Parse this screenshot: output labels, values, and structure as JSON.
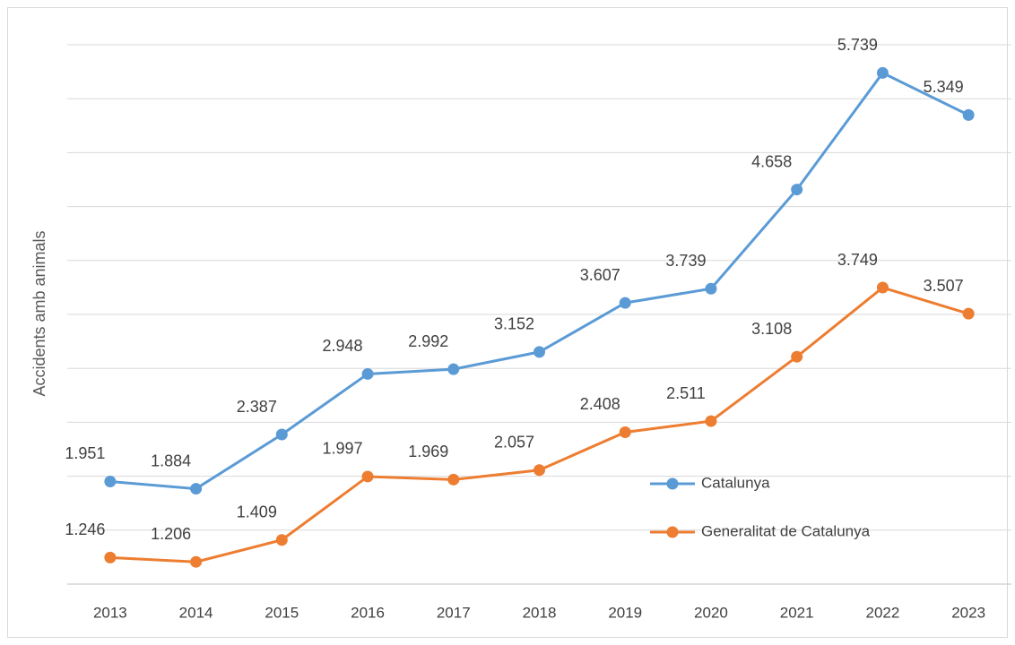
{
  "chart_data": {
    "type": "line",
    "y_label": "Accidents amb animals",
    "categories": [
      "2013",
      "2014",
      "2015",
      "2016",
      "2017",
      "2018",
      "2019",
      "2020",
      "2021",
      "2022",
      "2023"
    ],
    "series": [
      {
        "name": "Catalunya",
        "color": "#5b9bd5",
        "values": [
          1951,
          1884,
          2387,
          2948,
          2992,
          3152,
          3607,
          3739,
          4658,
          5739,
          5349
        ],
        "value_labels": [
          "1.951",
          "1.884",
          "2.387",
          "2.948",
          "2.992",
          "3.152",
          "3.607",
          "3.739",
          "4.658",
          "5.739",
          "5.349"
        ]
      },
      {
        "name": "Generalitat de Catalunya",
        "color": "#ed7d31",
        "values": [
          1246,
          1206,
          1409,
          1997,
          1969,
          2057,
          2408,
          2511,
          3108,
          3749,
          3507
        ],
        "value_labels": [
          "1.246",
          "1.206",
          "1.409",
          "1.997",
          "1.969",
          "2.057",
          "2.408",
          "2.511",
          "3.108",
          "3.749",
          "3.507"
        ]
      }
    ],
    "ylim": [
      1000,
      6000
    ],
    "yticks": [
      1000,
      1500,
      2000,
      2500,
      3000,
      3500,
      4000,
      4500,
      5000,
      5500,
      6000
    ],
    "grid": true,
    "legend": "right"
  }
}
